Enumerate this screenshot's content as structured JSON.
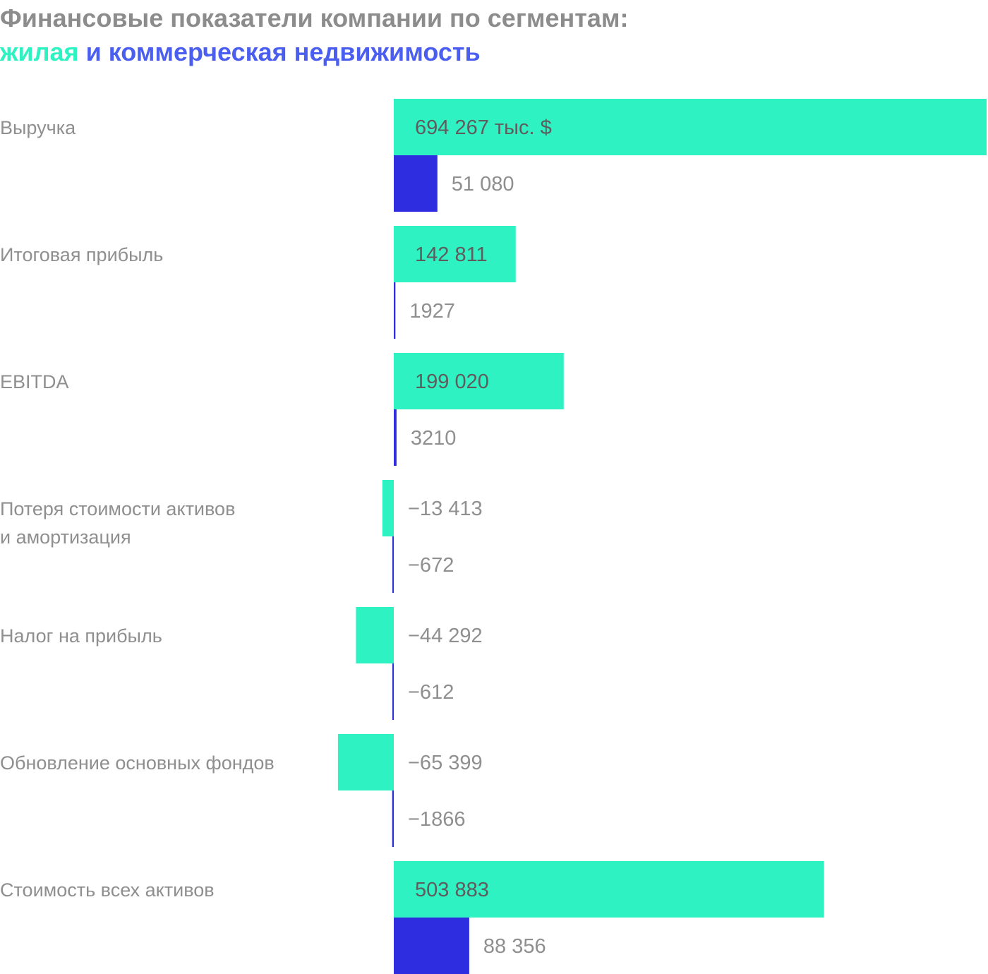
{
  "title": {
    "line1": "Финансовые показатели компании по сегментам:",
    "residential": "жилая",
    "connector": " и ",
    "commercial": "коммерческая недвижимость"
  },
  "colors": {
    "residential": "#2ff2c3",
    "commercial": "#2e2ee0",
    "title_gray": "#8c8c8c",
    "title_commercial": "#4a5ef0",
    "label_gray": "#8f8f8f"
  },
  "chart_data": {
    "type": "bar",
    "orientation": "horizontal",
    "unit": "тыс. $",
    "grid": false,
    "legend": "title",
    "xlim": [
      -65399,
      694267
    ],
    "categories": [
      [
        "Выручка"
      ],
      [
        "Итоговая прибыль"
      ],
      [
        "EBITDA"
      ],
      [
        "Потеря стоимости активов",
        "и амортизация"
      ],
      [
        "Налог на прибыль"
      ],
      [
        "Обновление основных фондов"
      ],
      [
        "Стоимость всех активов"
      ]
    ],
    "series": [
      {
        "name": "жилая",
        "values": [
          694267,
          142811,
          199020,
          -13413,
          -44292,
          -65399,
          503883
        ],
        "labels": [
          "694 267 тыс. $",
          "142 811",
          "199 020",
          "−13 413",
          "−44 292",
          "−65 399",
          "503 883"
        ]
      },
      {
        "name": "коммерческая недвижимость",
        "values": [
          51080,
          1927,
          3210,
          -672,
          -612,
          -1866,
          88356
        ],
        "labels": [
          "51 080",
          "1927",
          "3210",
          "−672",
          "−612",
          "−1866",
          "88 356"
        ]
      }
    ]
  }
}
